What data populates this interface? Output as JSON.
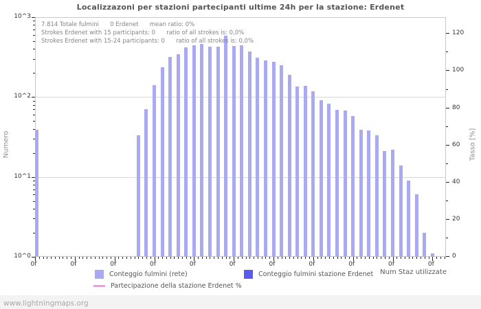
{
  "title": "Localizzazoni per stazioni partecipanti ultime 24h per la stazione: Erdenet",
  "watermark": "www.lightningmaps.org",
  "annotations": {
    "line1": "7.814 Totale fulmini      0 Erdenet      mean ratio: 0%",
    "line2": "Strokes Erdenet with 15 participants: 0      ratio of all strokes is: 0,0%",
    "line3": "Strokes Erdenet with 15-24 participants: 0      ratio of all strokes is: 0,0%"
  },
  "axes": {
    "left_title": "Numero",
    "right_title": "Tasso [%]",
    "x_title": "Num Staz utilizzate",
    "left_tick_labels": [
      "10^0",
      "10^1",
      "10^2",
      "10^3"
    ],
    "right_tick_labels": [
      "0",
      "20",
      "40",
      "60",
      "80",
      "100",
      "120"
    ],
    "x_tick_label": "0f"
  },
  "legend": [
    {
      "label": "Conteggio fulmini (rete)",
      "color": "#aaaaf2",
      "shape": "square"
    },
    {
      "label": "Conteggio fulmini stazione Erdenet",
      "color": "#5a5af0",
      "shape": "square"
    },
    {
      "label": "Partecipazione della stazione Erdenet %",
      "color": "#ee99ee",
      "shape": "line"
    }
  ],
  "colors": {
    "bar_network": "#aaaaf2",
    "bar_station": "#5a5af0",
    "participation_line": "#ee99ee",
    "grid": "#d8d8d8",
    "frame": "#c8c8c8",
    "tick": "#222222"
  },
  "chart_data": {
    "type": "bar",
    "title": "Localizzazoni per stazioni partecipanti ultime 24h per la stazione: Erdenet",
    "xlabel": "Num Staz utilizzate",
    "ylabel_left": "Numero",
    "ylabel_right": "Tasso [%]",
    "y_scale_left": "log10",
    "ylim_left": [
      1,
      1000
    ],
    "ylim_right": [
      0,
      129
    ],
    "right_axis_ticks": [
      0,
      20,
      40,
      60,
      80,
      100,
      120
    ],
    "x_slots": 52,
    "x_major_every_slots": 5,
    "x_major_tick_label_repeated": "0f",
    "grid": "horizontal-decades",
    "legend_position": "bottom",
    "series": [
      {
        "name": "Conteggio fulmini (rete)",
        "type": "bar",
        "points_slot_value": [
          [
            0,
            39
          ],
          [
            13,
            33
          ],
          [
            14,
            70
          ],
          [
            15,
            140
          ],
          [
            16,
            235
          ],
          [
            17,
            320
          ],
          [
            18,
            345
          ],
          [
            19,
            420
          ],
          [
            20,
            445
          ],
          [
            21,
            460
          ],
          [
            22,
            430
          ],
          [
            23,
            425
          ],
          [
            24,
            590
          ],
          [
            25,
            435
          ],
          [
            26,
            445
          ],
          [
            27,
            370
          ],
          [
            28,
            310
          ],
          [
            29,
            285
          ],
          [
            30,
            275
          ],
          [
            31,
            250
          ],
          [
            32,
            190
          ],
          [
            33,
            135
          ],
          [
            34,
            138
          ],
          [
            35,
            117
          ],
          [
            36,
            92
          ],
          [
            37,
            82
          ],
          [
            38,
            69
          ],
          [
            39,
            68
          ],
          [
            40,
            58
          ],
          [
            41,
            39
          ],
          [
            42,
            38
          ],
          [
            43,
            33
          ],
          [
            44,
            21
          ],
          [
            45,
            22
          ],
          [
            46,
            14
          ],
          [
            47,
            9
          ],
          [
            48,
            6
          ],
          [
            49,
            2
          ],
          [
            50,
            1.1
          ]
        ]
      },
      {
        "name": "Conteggio fulmini stazione Erdenet",
        "type": "bar",
        "points_slot_value": []
      },
      {
        "name": "Partecipazione della stazione Erdenet %",
        "type": "line",
        "points_slot_value": []
      }
    ],
    "stats": {
      "total_strokes_label": "7.814",
      "station_strokes": 0,
      "mean_ratio": "0%",
      "strokes_15_participants": 0,
      "ratio_15": "0,0%",
      "strokes_15_24_participants": 0,
      "ratio_15_24": "0,0%"
    }
  }
}
